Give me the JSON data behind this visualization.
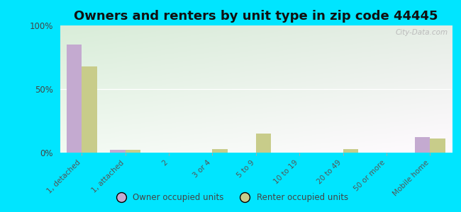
{
  "title": "Owners and renters by unit type in zip code 44445",
  "categories": [
    "1, detached",
    "1, attached",
    "2",
    "3 or 4",
    "5 to 9",
    "10 to 19",
    "20 to 49",
    "50 or more",
    "Mobile home"
  ],
  "owner_values": [
    85,
    2,
    0,
    0,
    0,
    0,
    0,
    0,
    12
  ],
  "renter_values": [
    68,
    2,
    0,
    3,
    15,
    0,
    3,
    0,
    11
  ],
  "owner_color": "#c4aad0",
  "renter_color": "#c8cc8a",
  "bg_color_topleft": "#c8e8c0",
  "bg_color_topright": "#e8f5e0",
  "bg_color_bottom": "#f0f8e8",
  "outer_bg": "#00e5ff",
  "ylim": [
    0,
    100
  ],
  "yticks": [
    0,
    50,
    100
  ],
  "ytick_labels": [
    "0%",
    "50%",
    "100%"
  ],
  "bar_width": 0.35,
  "title_fontsize": 13,
  "legend_owner": "Owner occupied units",
  "legend_renter": "Renter occupied units",
  "watermark": "City-Data.com"
}
